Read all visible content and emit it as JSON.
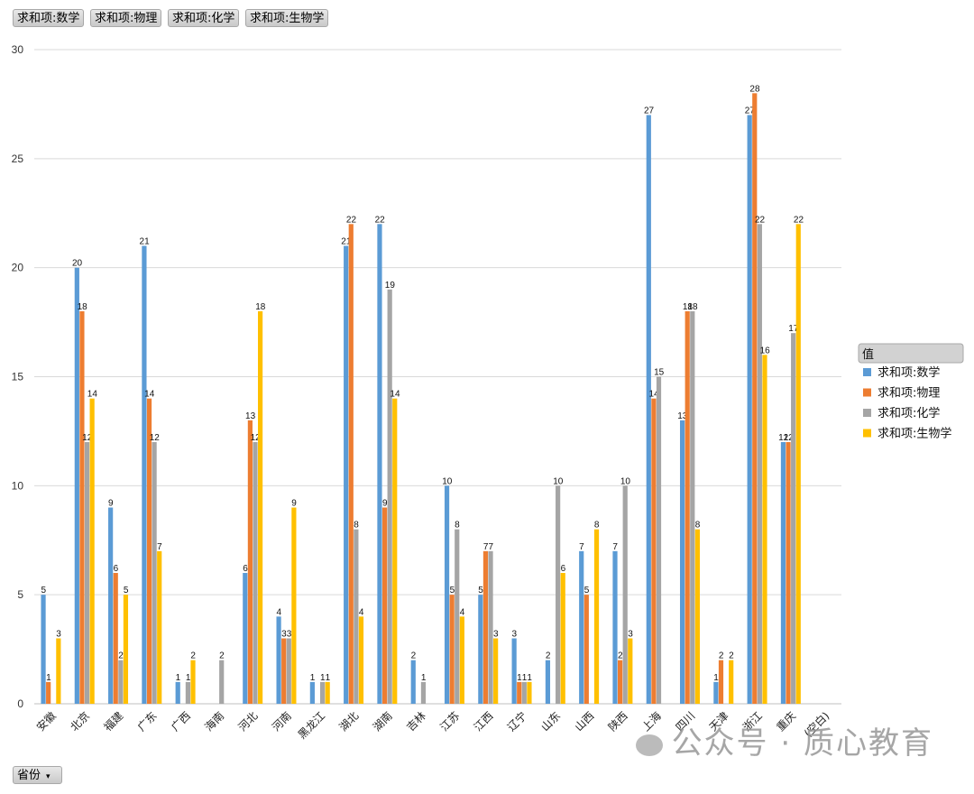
{
  "field_buttons": [
    "求和项:数学",
    "求和项:物理",
    "求和项:化学",
    "求和项:生物学"
  ],
  "row_field": {
    "label": "省份",
    "arrow": "▾"
  },
  "watermark": "公众号 · 质心教育",
  "chart_data": {
    "type": "bar",
    "categories": [
      "安徽",
      "北京",
      "福建",
      "广东",
      "广西",
      "海南",
      "河北",
      "河南",
      "黑龙江",
      "湖北",
      "湖南",
      "吉林",
      "江苏",
      "江西",
      "辽宁",
      "山东",
      "山西",
      "陕西",
      "上海",
      "四川",
      "天津",
      "浙江",
      "重庆",
      "(空白)"
    ],
    "series": [
      {
        "name": "求和项:数学",
        "color": "#5b9bd5",
        "values": [
          5,
          20,
          9,
          21,
          1,
          null,
          6,
          4,
          1,
          21,
          22,
          2,
          10,
          5,
          3,
          2,
          7,
          7,
          27,
          13,
          1,
          27,
          12,
          null
        ]
      },
      {
        "name": "求和项:物理",
        "color": "#ed7d31",
        "values": [
          1,
          18,
          6,
          14,
          null,
          null,
          13,
          3,
          null,
          22,
          9,
          null,
          5,
          7,
          1,
          null,
          5,
          2,
          14,
          18,
          2,
          28,
          12,
          null
        ]
      },
      {
        "name": "求和项:化学",
        "color": "#a5a5a5",
        "values": [
          null,
          12,
          2,
          12,
          1,
          2,
          12,
          3,
          1,
          8,
          19,
          1,
          8,
          7,
          1,
          10,
          null,
          10,
          15,
          18,
          null,
          22,
          17,
          null
        ]
      },
      {
        "name": "求和项:生物学",
        "color": "#ffc000",
        "values": [
          3,
          14,
          5,
          7,
          2,
          null,
          18,
          9,
          1,
          4,
          14,
          null,
          4,
          3,
          1,
          6,
          8,
          3,
          null,
          8,
          2,
          16,
          22,
          null
        ]
      }
    ],
    "yticks": [
      0,
      5,
      10,
      15,
      20,
      25,
      30
    ],
    "ylim": [
      0,
      30
    ],
    "legend": {
      "title": "值",
      "position": "right"
    },
    "grid": true
  }
}
